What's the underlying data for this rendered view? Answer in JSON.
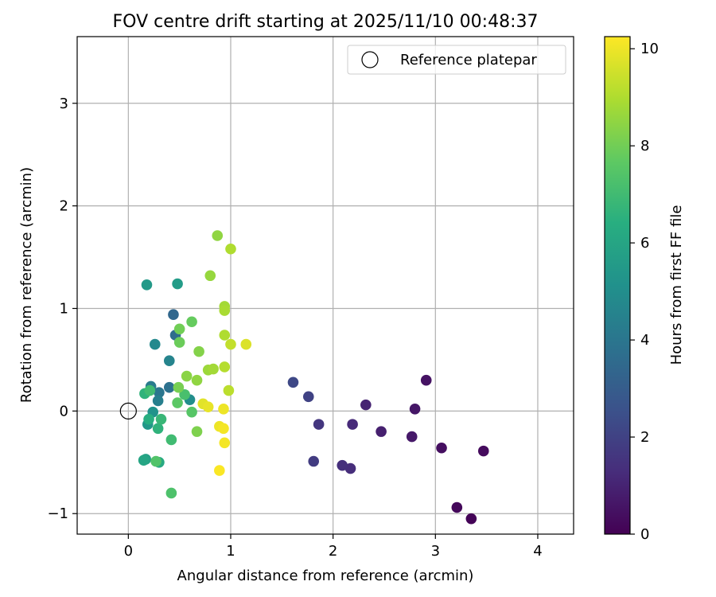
{
  "chart_data": {
    "type": "scatter",
    "title": "FOV centre drift starting at 2025/11/10 00:48:37",
    "xlabel": "Angular distance from reference (arcmin)",
    "ylabel": "Rotation from reference (arcmin)",
    "xlim": [
      -0.5,
      4.35
    ],
    "ylim": [
      -1.2,
      3.65
    ],
    "xticks": [
      "0",
      "1",
      "2",
      "3",
      "4"
    ],
    "yticks": [
      "−1",
      "0",
      "1",
      "2",
      "3"
    ],
    "grid": true,
    "legend": {
      "position": "top-right",
      "entries": [
        "Reference platepar"
      ]
    },
    "reference_point": {
      "x": 0,
      "y": 0
    },
    "colorbar": {
      "label": "Hours from first FF file",
      "range": [
        0,
        10.25
      ],
      "ticks": [
        "0",
        "2",
        "4",
        "6",
        "8",
        "10"
      ],
      "colormap": "viridis"
    },
    "points": [
      {
        "x": 3.35,
        "y": -1.05,
        "h": 0.1
      },
      {
        "x": 3.21,
        "y": -0.94,
        "h": 0.2
      },
      {
        "x": 3.47,
        "y": -0.39,
        "h": 0.3
      },
      {
        "x": 3.06,
        "y": -0.36,
        "h": 0.4
      },
      {
        "x": 2.91,
        "y": 0.3,
        "h": 0.5
      },
      {
        "x": 2.8,
        "y": 0.02,
        "h": 0.6
      },
      {
        "x": 2.77,
        "y": -0.25,
        "h": 0.7
      },
      {
        "x": 2.47,
        "y": -0.2,
        "h": 0.9
      },
      {
        "x": 2.32,
        "y": 0.06,
        "h": 1.0
      },
      {
        "x": 2.19,
        "y": -0.13,
        "h": 1.2
      },
      {
        "x": 2.17,
        "y": -0.56,
        "h": 1.3
      },
      {
        "x": 2.09,
        "y": -0.53,
        "h": 1.4
      },
      {
        "x": 1.86,
        "y": -0.13,
        "h": 1.6
      },
      {
        "x": 1.81,
        "y": -0.49,
        "h": 1.8
      },
      {
        "x": 1.76,
        "y": 0.14,
        "h": 2.0
      },
      {
        "x": 1.61,
        "y": 0.28,
        "h": 2.2
      },
      {
        "x": 0.44,
        "y": 0.94,
        "h": 3.4
      },
      {
        "x": 0.46,
        "y": 0.74,
        "h": 3.6
      },
      {
        "x": 0.4,
        "y": 0.23,
        "h": 3.8
      },
      {
        "x": 0.3,
        "y": 0.18,
        "h": 4.0
      },
      {
        "x": 0.22,
        "y": 0.24,
        "h": 4.2
      },
      {
        "x": 0.29,
        "y": 0.1,
        "h": 4.4
      },
      {
        "x": 0.4,
        "y": 0.49,
        "h": 4.6
      },
      {
        "x": 0.26,
        "y": 0.65,
        "h": 4.8
      },
      {
        "x": 0.6,
        "y": 0.11,
        "h": 5.0
      },
      {
        "x": 0.24,
        "y": -0.01,
        "h": 5.2
      },
      {
        "x": 0.19,
        "y": -0.13,
        "h": 5.4
      },
      {
        "x": 0.18,
        "y": 1.23,
        "h": 5.5
      },
      {
        "x": 0.48,
        "y": 1.24,
        "h": 5.6
      },
      {
        "x": 0.17,
        "y": -0.47,
        "h": 5.8
      },
      {
        "x": 0.15,
        "y": -0.48,
        "h": 6.0
      },
      {
        "x": 0.3,
        "y": -0.5,
        "h": 6.2
      },
      {
        "x": 0.2,
        "y": -0.08,
        "h": 6.4
      },
      {
        "x": 0.29,
        "y": -0.17,
        "h": 6.6
      },
      {
        "x": 0.16,
        "y": 0.17,
        "h": 6.6
      },
      {
        "x": 0.32,
        "y": -0.08,
        "h": 6.8
      },
      {
        "x": 0.42,
        "y": -0.28,
        "h": 7.0
      },
      {
        "x": 0.21,
        "y": 0.2,
        "h": 7.0
      },
      {
        "x": 0.55,
        "y": 0.16,
        "h": 7.2
      },
      {
        "x": 0.42,
        "y": -0.8,
        "h": 7.3
      },
      {
        "x": 0.27,
        "y": -0.49,
        "h": 7.4
      },
      {
        "x": 0.62,
        "y": -0.01,
        "h": 7.5
      },
      {
        "x": 0.48,
        "y": 0.08,
        "h": 7.6
      },
      {
        "x": 0.62,
        "y": 0.87,
        "h": 7.8
      },
      {
        "x": 0.5,
        "y": 0.67,
        "h": 7.9
      },
      {
        "x": 0.5,
        "y": 0.8,
        "h": 8.0
      },
      {
        "x": 0.49,
        "y": 0.23,
        "h": 8.1
      },
      {
        "x": 0.67,
        "y": -0.2,
        "h": 8.2
      },
      {
        "x": 0.69,
        "y": 0.58,
        "h": 8.3
      },
      {
        "x": 0.57,
        "y": 0.34,
        "h": 8.4
      },
      {
        "x": 0.67,
        "y": 0.3,
        "h": 8.5
      },
      {
        "x": 0.87,
        "y": 1.71,
        "h": 8.5
      },
      {
        "x": 0.8,
        "y": 1.32,
        "h": 8.6
      },
      {
        "x": 0.78,
        "y": 0.4,
        "h": 8.7
      },
      {
        "x": 0.83,
        "y": 0.41,
        "h": 8.8
      },
      {
        "x": 0.94,
        "y": 1.02,
        "h": 8.8
      },
      {
        "x": 0.94,
        "y": 0.98,
        "h": 8.9
      },
      {
        "x": 1.0,
        "y": 1.58,
        "h": 9.0
      },
      {
        "x": 0.94,
        "y": 0.74,
        "h": 9.0
      },
      {
        "x": 0.94,
        "y": 0.43,
        "h": 9.1
      },
      {
        "x": 0.98,
        "y": 0.2,
        "h": 9.2
      },
      {
        "x": 1.0,
        "y": 0.65,
        "h": 9.3
      },
      {
        "x": 1.15,
        "y": 0.65,
        "h": 9.7
      },
      {
        "x": 0.73,
        "y": 0.07,
        "h": 9.8
      },
      {
        "x": 0.78,
        "y": 0.04,
        "h": 9.9
      },
      {
        "x": 0.93,
        "y": 0.02,
        "h": 10.0
      },
      {
        "x": 0.89,
        "y": -0.15,
        "h": 10.0
      },
      {
        "x": 0.93,
        "y": -0.17,
        "h": 10.1
      },
      {
        "x": 0.94,
        "y": -0.31,
        "h": 10.1
      },
      {
        "x": 0.89,
        "y": -0.58,
        "h": 10.2
      }
    ]
  }
}
